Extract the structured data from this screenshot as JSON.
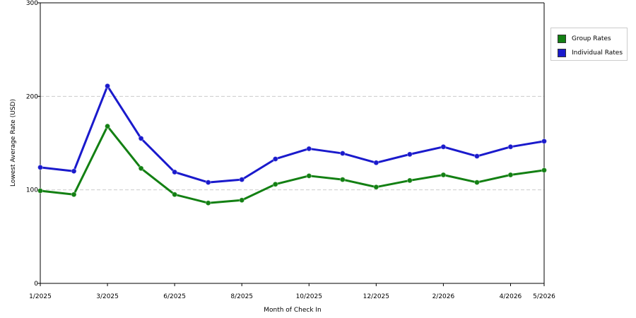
{
  "chart_data": {
    "type": "line",
    "title": "",
    "xlabel": "Month of Check In",
    "ylabel": "Lowest Average Rate (USD)",
    "ylim": [
      0,
      300
    ],
    "y_ticks": [
      "0",
      "100",
      "200",
      "300"
    ],
    "grid": "horizontal dashed at major y ticks",
    "legend_position": "right",
    "x_points": [
      "1/2025",
      "2/2025",
      "3/2025",
      "4/2025",
      "6/2025",
      "7/2025",
      "8/2025",
      "9/2025",
      "10/2025",
      "11/2025",
      "12/2025",
      "1/2026",
      "2/2026",
      "3/2026",
      "4/2026",
      "5/2026"
    ],
    "x_tick_labels": [
      {
        "index": 0,
        "label": "1/2025"
      },
      {
        "index": 2,
        "label": "3/2025"
      },
      {
        "index": 4,
        "label": "6/2025"
      },
      {
        "index": 6,
        "label": "8/2025"
      },
      {
        "index": 8,
        "label": "10/2025"
      },
      {
        "index": 10,
        "label": "12/2025"
      },
      {
        "index": 12,
        "label": "2/2026"
      },
      {
        "index": 14,
        "label": "4/2026"
      },
      {
        "index": 15,
        "label": "5/2026"
      }
    ],
    "series": [
      {
        "name": "Group Rates",
        "color": "#138013",
        "values": [
          99,
          95,
          168,
          123,
          95,
          86,
          89,
          106,
          115,
          111,
          103,
          110,
          116,
          108,
          116,
          121
        ]
      },
      {
        "name": "Individual Rates",
        "color": "#1a1acc",
        "values": [
          124,
          120,
          211,
          155,
          119,
          108,
          111,
          133,
          144,
          139,
          129,
          138,
          146,
          136,
          146,
          152
        ]
      }
    ]
  }
}
